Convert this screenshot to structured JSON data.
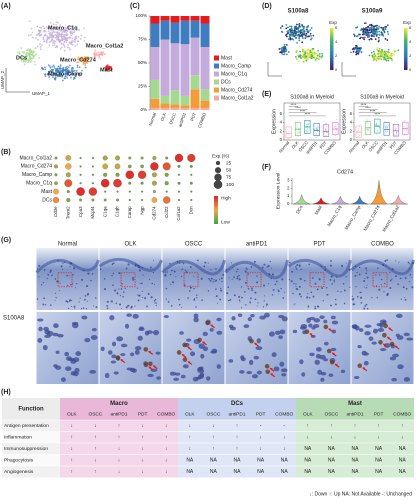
{
  "umap": {
    "label": "(A)",
    "clusters": [
      "Macro_C1q",
      "Macro_Col1a2",
      "Mast",
      "Macro_Camp",
      "DCs",
      "Macro_Cd274"
    ],
    "x_label": "UMAP_1",
    "y_label": "UMAP_2"
  },
  "feature_plots": {
    "label": "(D)",
    "panels": [
      {
        "title": "S100a8",
        "legend_title": "Exp",
        "ticks": [
          0,
          2,
          4,
          6
        ]
      },
      {
        "title": "S100a9",
        "legend_title": "Exp",
        "ticks": [
          0,
          2,
          4,
          6
        ]
      }
    ]
  },
  "chart_data": [
    {
      "type": "stacked_bar",
      "label": "(C)",
      "categories": [
        "Normal",
        "OLK",
        "OSCC",
        "antiPD1",
        "PDT",
        "COMBO"
      ],
      "series": [
        {
          "name": "Mast",
          "color": "#e41a1c",
          "values": [
            8,
            5,
            7,
            5,
            5,
            8
          ]
        },
        {
          "name": "Macro_Camp",
          "color": "#3f7dc0",
          "values": [
            25,
            20,
            22,
            25,
            18,
            25
          ]
        },
        {
          "name": "Macro_C1q",
          "color": "#c4abdc",
          "values": [
            35,
            60,
            50,
            55,
            40,
            45
          ]
        },
        {
          "name": "DCs",
          "color": "#a6d98f",
          "values": [
            20,
            8,
            15,
            10,
            15,
            12
          ]
        },
        {
          "name": "Macro_Cd274",
          "color": "#f39c3a",
          "values": [
            10,
            5,
            4,
            3,
            20,
            8
          ]
        },
        {
          "name": "Macro_Col1a2",
          "color": "#f6a9ad",
          "values": [
            2,
            2,
            2,
            2,
            2,
            2
          ]
        }
      ],
      "ylim": [
        0,
        100
      ],
      "yticks": [
        {
          "value": 0,
          "label": "0%"
        },
        {
          "value": 25,
          "label": "25%"
        },
        {
          "value": 50,
          "label": "50%"
        },
        {
          "value": 75,
          "label": "75%"
        },
        {
          "value": 100,
          "label": "100%"
        }
      ]
    },
    {
      "type": "box",
      "label": "(E)",
      "title": "S100a8 in Myeloid",
      "y_label": "Expression",
      "categories": [
        "Normal",
        "OLK",
        "OSCC",
        "antiPD1",
        "PDT",
        "COMBO"
      ],
      "colors": [
        "#f6a9ad",
        "#6fbf73",
        "#2aa198",
        "#3f7dc0",
        "#9b6fc1",
        "#e377c2"
      ],
      "q1": [
        0.5,
        1,
        1.5,
        1,
        0.8,
        1.2
      ],
      "median": [
        1.5,
        2.5,
        3,
        2.2,
        2,
        2.5
      ],
      "q3": [
        3,
        4,
        4.5,
        3.8,
        3.5,
        4
      ],
      "ylim": [
        0,
        8.5
      ],
      "yticks": [
        0,
        2,
        4,
        6
      ],
      "annotations": [
        "****",
        "****",
        "****",
        "****"
      ]
    },
    {
      "type": "box",
      "title": "S100a9 in Myeloid",
      "y_label": "Expression",
      "categories": [
        "Normal",
        "OLK",
        "OSCC",
        "antiPD1",
        "PDT",
        "COMBO"
      ],
      "colors": [
        "#f6a9ad",
        "#6fbf73",
        "#2aa198",
        "#3f7dc0",
        "#9b6fc1",
        "#e377c2"
      ],
      "q1": [
        0.6,
        1.2,
        1.6,
        1.1,
        0.9,
        1.3
      ],
      "median": [
        1.8,
        2.8,
        3.2,
        2.4,
        2.1,
        2.6
      ],
      "q3": [
        3.2,
        4.2,
        4.8,
        4,
        3.6,
        4.1
      ],
      "ylim": [
        0,
        8.5
      ],
      "yticks": [
        0,
        2,
        4,
        6
      ],
      "annotations": [
        "****",
        "****",
        "****",
        "****"
      ]
    },
    {
      "type": "dot",
      "label": "(B)",
      "categories": [
        "Cd3e",
        "Trem2",
        "Cpa3",
        "Mcpt4",
        "C1qa",
        "C1qb",
        "Camp",
        "Ngp",
        "Cd274",
        "Ccl22",
        "Col1a2",
        "Dcn"
      ],
      "rows": [
        "Macro_Col1a2",
        "Macro_Cd274",
        "Macro_Camp",
        "Macro_C1q",
        "Mast",
        "DCs"
      ],
      "pct": [
        [
          10,
          40,
          5,
          5,
          30,
          30,
          10,
          10,
          20,
          10,
          90,
          85
        ],
        [
          20,
          50,
          5,
          5,
          40,
          40,
          15,
          15,
          90,
          80,
          10,
          10
        ],
        [
          10,
          30,
          5,
          5,
          20,
          20,
          95,
          90,
          30,
          20,
          5,
          5
        ],
        [
          15,
          80,
          5,
          5,
          95,
          95,
          10,
          10,
          30,
          20,
          10,
          10
        ],
        [
          40,
          10,
          95,
          90,
          5,
          5,
          5,
          5,
          10,
          5,
          5,
          5
        ],
        [
          50,
          20,
          10,
          10,
          10,
          10,
          5,
          5,
          40,
          70,
          5,
          5
        ]
      ],
      "exp": [
        [
          0.2,
          0.4,
          0.1,
          0.1,
          0.3,
          0.3,
          0.2,
          0.2,
          0.3,
          0.2,
          0.95,
          0.9
        ],
        [
          0.3,
          0.5,
          0.1,
          0.1,
          0.4,
          0.4,
          0.2,
          0.2,
          0.95,
          0.8,
          0.1,
          0.1
        ],
        [
          0.2,
          0.3,
          0.1,
          0.1,
          0.2,
          0.2,
          0.95,
          0.9,
          0.3,
          0.2,
          0.1,
          0.1
        ],
        [
          0.2,
          0.8,
          0.1,
          0.1,
          0.95,
          0.9,
          0.1,
          0.1,
          0.3,
          0.2,
          0.1,
          0.1
        ],
        [
          0.5,
          0.1,
          0.95,
          0.9,
          0.1,
          0.1,
          0.1,
          0.1,
          0.2,
          0.1,
          0.1,
          0.1
        ],
        [
          0.6,
          0.2,
          0.2,
          0.2,
          0.2,
          0.2,
          0.1,
          0.1,
          0.5,
          0.7,
          0.1,
          0.1
        ]
      ],
      "size_legend_title": "Exp.(%)",
      "size_ticks": [
        25,
        50,
        75,
        100
      ],
      "color_legend": [
        "High",
        "Low"
      ]
    },
    {
      "type": "violin",
      "label": "(F)",
      "title": "Cd274",
      "y_label": "Expression Level",
      "categories": [
        "DCs",
        "Mast",
        "Macro_C1q",
        "Macro_Camp",
        "Macro_Cd274",
        "Macro_Col1a2"
      ],
      "values": [
        1.2,
        0.8,
        1.0,
        1.0,
        3.0,
        1.1
      ],
      "colors": [
        "#a6d98f",
        "#e41a1c",
        "#c4abdc",
        "#3f7dc0",
        "#f39c3a",
        "#f6a9ad"
      ],
      "ylim": [
        0,
        3.3
      ],
      "yticks": [
        0,
        1,
        2,
        3
      ]
    }
  ],
  "histology": {
    "label": "(G)",
    "columns": [
      "Normal",
      "OLK",
      "OSCC",
      "antiPD1",
      "PDT",
      "COMBO"
    ],
    "row_label": "S100A8"
  },
  "table": {
    "label": "(H)",
    "header": "Function",
    "groups": [
      {
        "name": "Macro",
        "columns": [
          "OLK",
          "OSCC",
          "antiPD1",
          "PDT",
          "COMBO"
        ]
      },
      {
        "name": "DCs",
        "columns": [
          "OLK",
          "OSCC",
          "antiPD1",
          "PDT",
          "COMBO"
        ]
      },
      {
        "name": "Mast",
        "columns": [
          "OLK",
          "OSCC",
          "antiPD1",
          "PDT",
          "COMBO"
        ]
      }
    ],
    "rows": [
      {
        "name": "Antigen presentation",
        "cells": [
          "↓",
          "↓",
          "↑",
          "↓",
          "↓",
          "↓",
          "↓",
          "↑",
          "-",
          "-",
          "↑",
          "↑",
          "↑",
          "↑",
          "↑"
        ]
      },
      {
        "name": "Inflammation",
        "cells": [
          "↑",
          "↑",
          "↑",
          "↑",
          "↑",
          "↑",
          "↑",
          "↑",
          "↓",
          "↓",
          "↓",
          "↓",
          "↓",
          "↓",
          "↓"
        ]
      },
      {
        "name": "Immunosuppression",
        "cells": [
          "↓",
          "↑",
          "↓",
          "↓",
          "↓",
          "↓",
          "↑",
          "↑",
          "↓",
          "↓",
          "NA",
          "NA",
          "NA",
          "NA",
          "NA"
        ]
      },
      {
        "name": "Phagocytosis",
        "cells": [
          "↑",
          "↓",
          "↓",
          "↓",
          "↓",
          "NA",
          "NA",
          "NA",
          "NA",
          "NA",
          "NA",
          "NA",
          "NA",
          "NA",
          "NA"
        ]
      },
      {
        "name": "Angiogenesis",
        "cells": [
          "↑",
          "↑",
          "↓",
          "↓",
          "↓",
          "NA",
          "NA",
          "NA",
          "NA",
          "NA",
          "NA",
          "NA",
          "NA",
          "NA",
          "NA"
        ]
      }
    ],
    "footnote": "↓: Down  ↑: Up  NA: Not Available  -: Unchanged"
  }
}
